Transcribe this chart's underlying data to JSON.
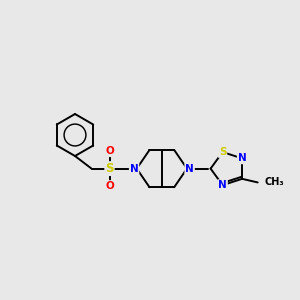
{
  "bg_color": "#e8e8e8",
  "bond_color": "#000000",
  "N_color": "#0000ff",
  "S_color": "#cccc00",
  "O_color": "#ff0000",
  "line_width": 1.4,
  "font_size": 7.5,
  "xlim": [
    0,
    10
  ],
  "ylim": [
    0,
    10
  ]
}
